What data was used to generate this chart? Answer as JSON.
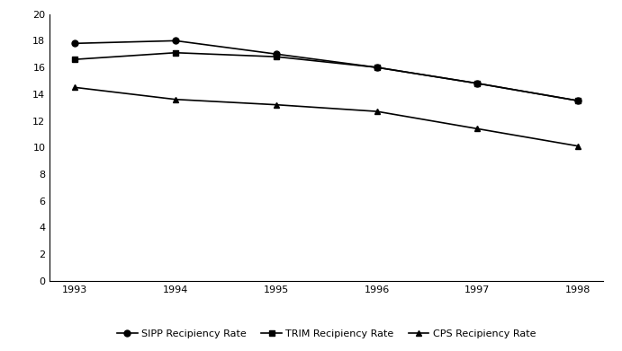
{
  "years": [
    1993,
    1994,
    1995,
    1996,
    1997,
    1998
  ],
  "sipp": [
    17.8,
    18.0,
    17.0,
    16.0,
    14.8,
    13.5
  ],
  "trim": [
    16.6,
    17.1,
    16.8,
    16.0,
    14.8,
    13.5
  ],
  "cps": [
    14.5,
    13.6,
    13.2,
    12.7,
    11.4,
    10.1
  ],
  "ylim": [
    0,
    20
  ],
  "yticks": [
    0,
    2,
    4,
    6,
    8,
    10,
    12,
    14,
    16,
    18,
    20
  ],
  "line_color": "#000000",
  "marker_sipp": "o",
  "marker_trim": "s",
  "marker_cps": "^",
  "legend_labels": [
    "SIPP Recipiency Rate",
    "TRIM Recipiency Rate",
    "CPS Recipiency Rate"
  ],
  "markersize": 5,
  "linewidth": 1.2,
  "bg_color": "#ffffff",
  "font_size_ticks": 8,
  "font_size_legend": 8
}
